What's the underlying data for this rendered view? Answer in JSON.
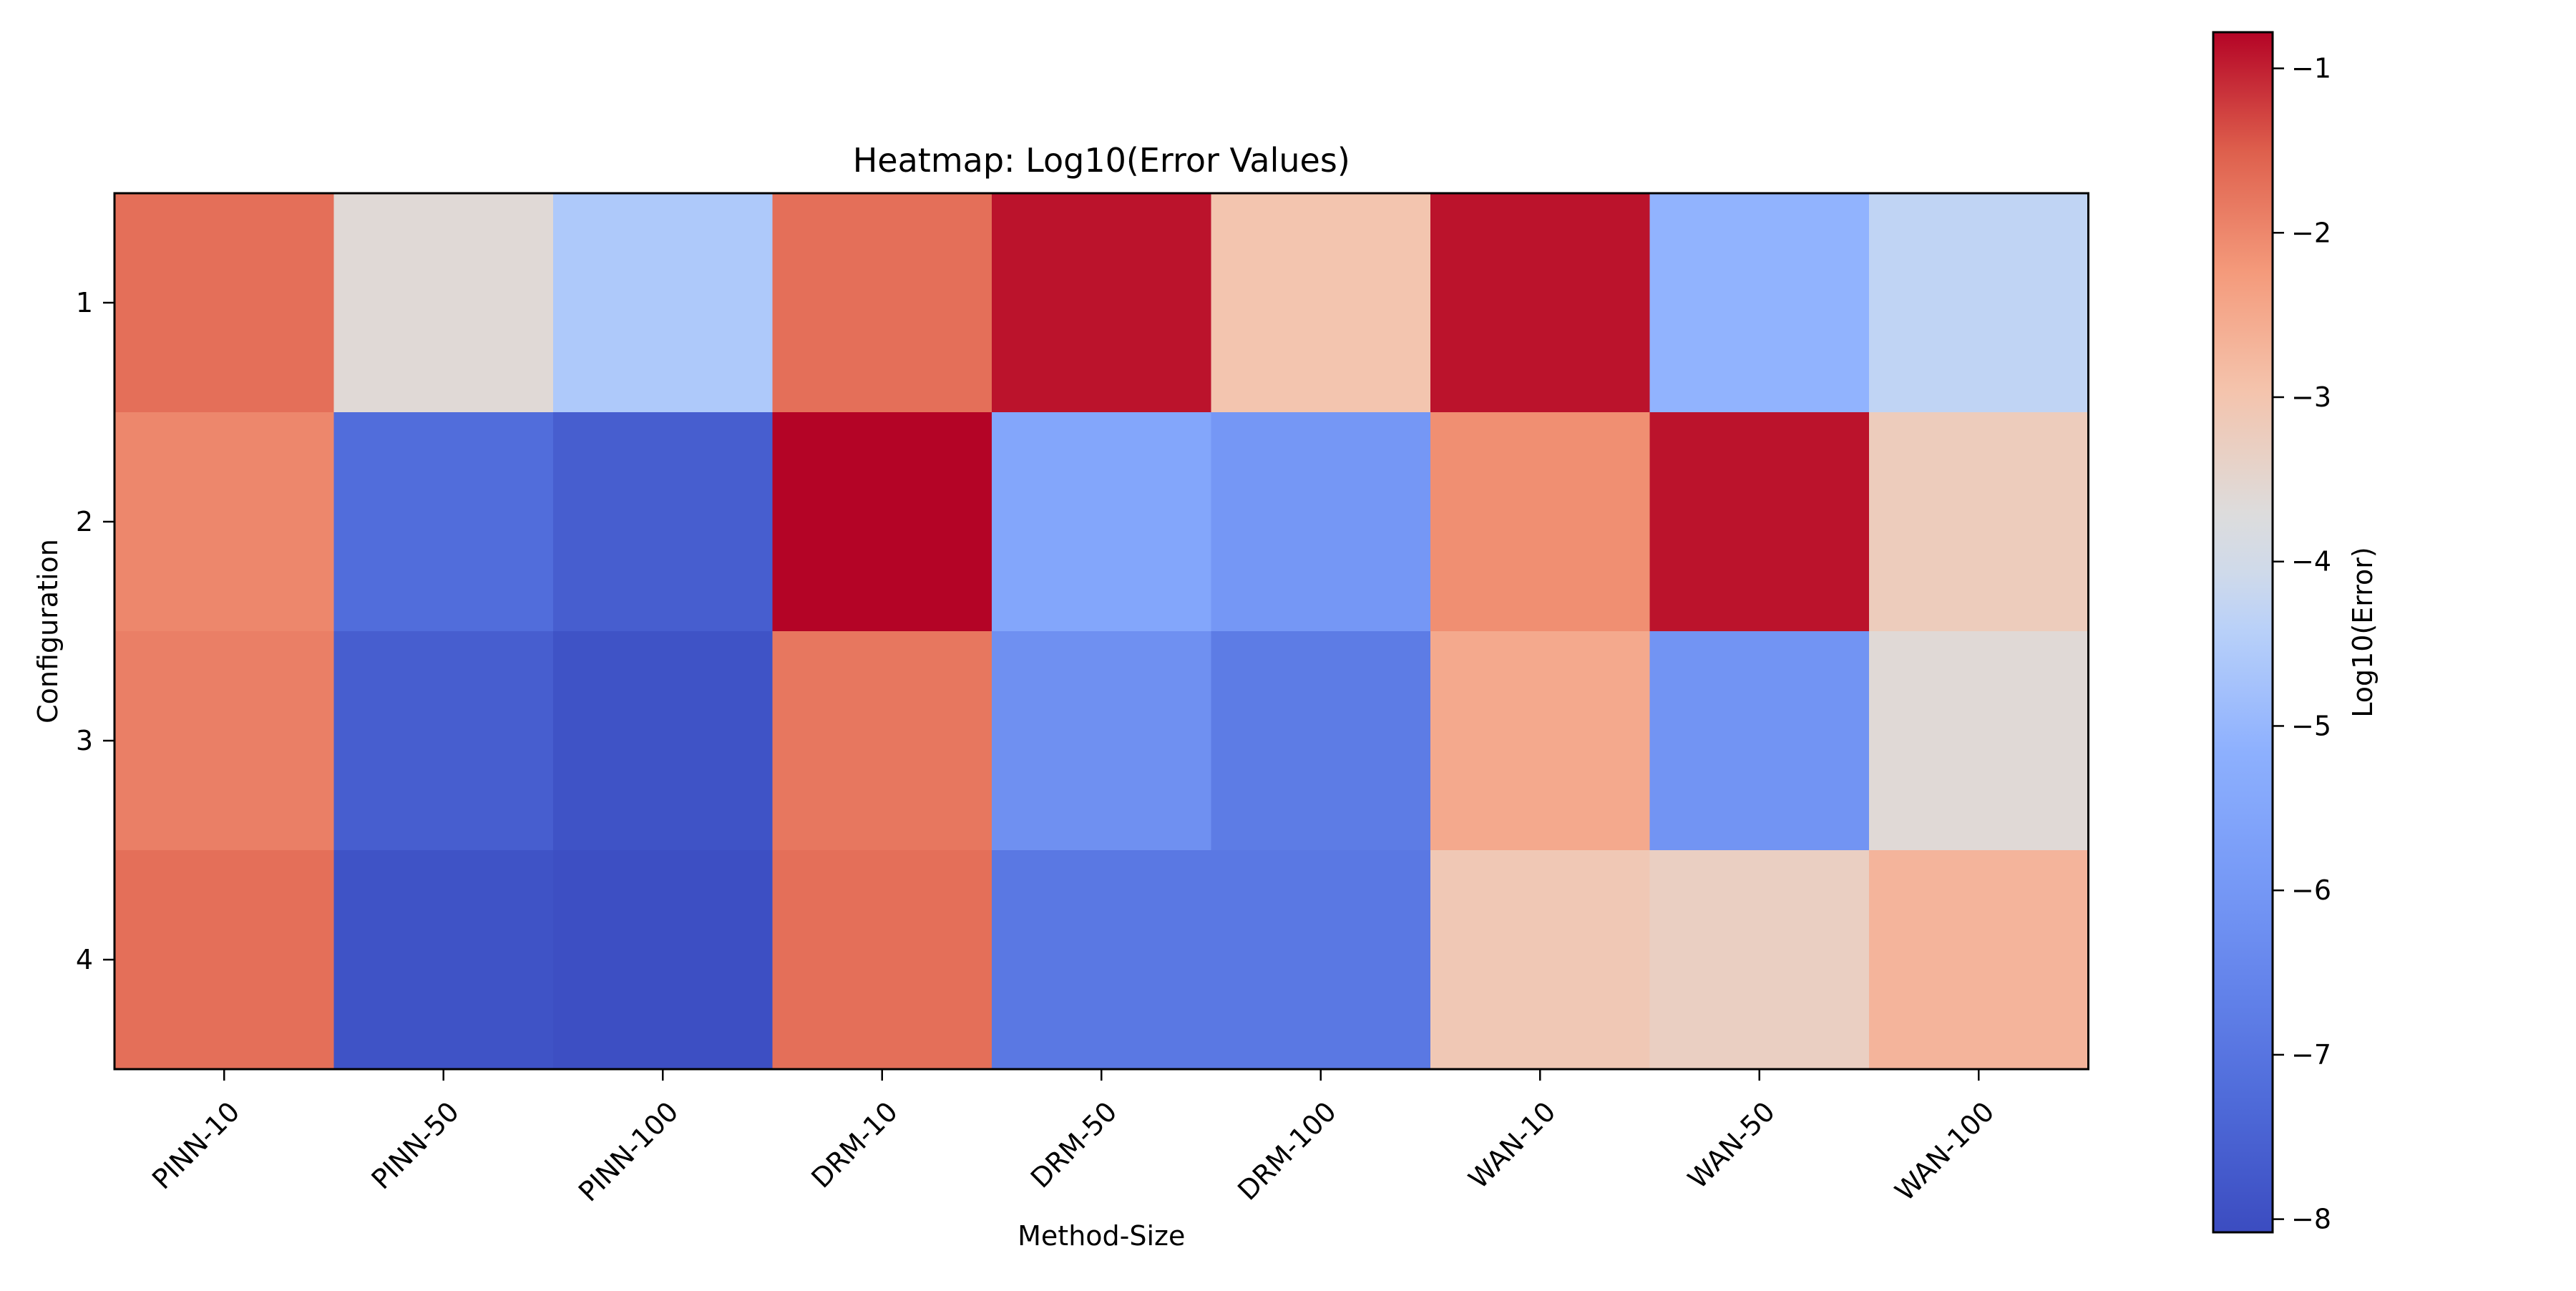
{
  "chart_data": {
    "type": "heatmap",
    "title": "Heatmap: Log10(Error Values)",
    "xlabel": "Method-Size",
    "ylabel": "Configuration",
    "x_categories": [
      "PINN-10",
      "PINN-50",
      "PINN-100",
      "DRM-10",
      "DRM-50",
      "DRM-100",
      "WAN-10",
      "WAN-50",
      "WAN-100"
    ],
    "y_categories": [
      "1",
      "2",
      "3",
      "4"
    ],
    "values": [
      [
        -1.7,
        -3.6,
        -4.6,
        -1.7,
        -0.9,
        -3.0,
        -0.9,
        -5.1,
        -4.3
      ],
      [
        -2.0,
        -7.2,
        -7.6,
        -0.75,
        -5.5,
        -6.0,
        -2.1,
        -0.9,
        -3.2
      ],
      [
        -1.9,
        -7.6,
        -7.9,
        -1.8,
        -6.2,
        -6.8,
        -2.5,
        -6.1,
        -3.6
      ],
      [
        -1.7,
        -7.9,
        -8.0,
        -1.7,
        -6.9,
        -6.9,
        -3.1,
        -3.3,
        -2.7
      ]
    ],
    "colormap": "coolwarm",
    "colorbar": {
      "label": "Log10(Error)",
      "min": -8.08,
      "max": -0.78,
      "ticks": [
        -1,
        -2,
        -3,
        -4,
        -5,
        -6,
        -7,
        -8
      ],
      "tick_labels": [
        "−1",
        "−2",
        "−3",
        "−4",
        "−5",
        "−6",
        "−7",
        "−8"
      ]
    }
  }
}
